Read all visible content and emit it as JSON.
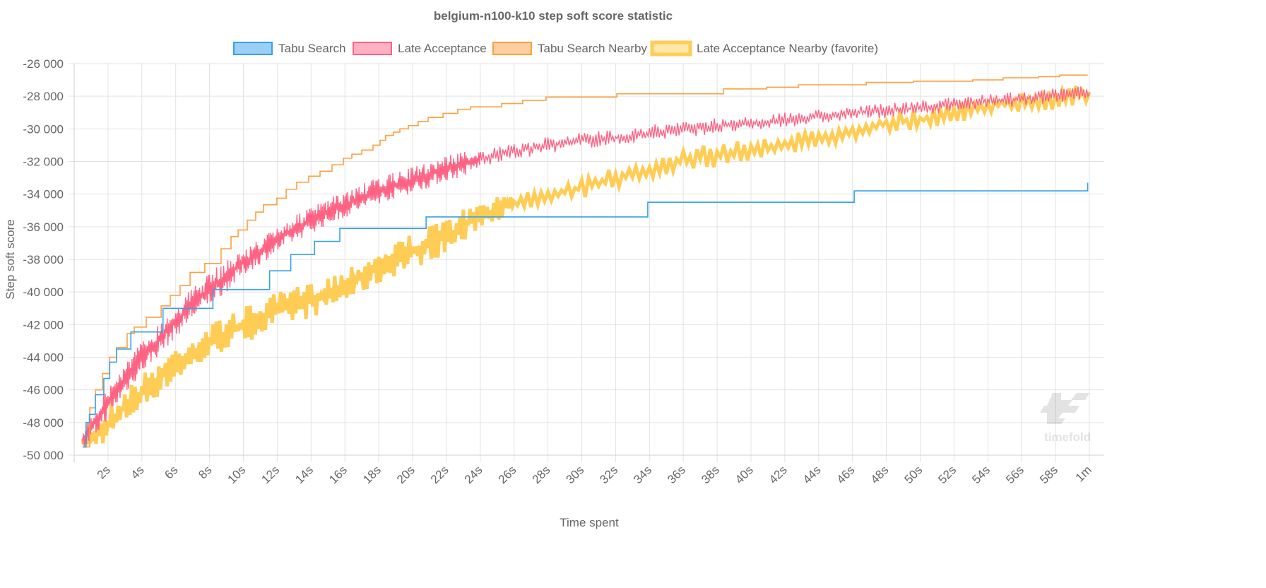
{
  "chart_data": {
    "type": "line",
    "title": "belgium-n100-k10 step soft score statistic",
    "xlabel": "Time spent",
    "ylabel": "Step soft score",
    "xlim": [
      0,
      60
    ],
    "ylim": [
      -50000,
      -26000
    ],
    "grid": true,
    "legend_position": "top",
    "x_ticks": [
      {
        "value": 2,
        "label": "2s"
      },
      {
        "value": 4,
        "label": "4s"
      },
      {
        "value": 6,
        "label": "6s"
      },
      {
        "value": 8,
        "label": "8s"
      },
      {
        "value": 10,
        "label": "10s"
      },
      {
        "value": 12,
        "label": "12s"
      },
      {
        "value": 14,
        "label": "14s"
      },
      {
        "value": 16,
        "label": "16s"
      },
      {
        "value": 18,
        "label": "18s"
      },
      {
        "value": 20,
        "label": "20s"
      },
      {
        "value": 22,
        "label": "22s"
      },
      {
        "value": 24,
        "label": "24s"
      },
      {
        "value": 26,
        "label": "26s"
      },
      {
        "value": 28,
        "label": "28s"
      },
      {
        "value": 30,
        "label": "30s"
      },
      {
        "value": 32,
        "label": "32s"
      },
      {
        "value": 34,
        "label": "34s"
      },
      {
        "value": 36,
        "label": "36s"
      },
      {
        "value": 38,
        "label": "38s"
      },
      {
        "value": 40,
        "label": "40s"
      },
      {
        "value": 42,
        "label": "42s"
      },
      {
        "value": 44,
        "label": "44s"
      },
      {
        "value": 46,
        "label": "46s"
      },
      {
        "value": 48,
        "label": "48s"
      },
      {
        "value": 50,
        "label": "50s"
      },
      {
        "value": 52,
        "label": "52s"
      },
      {
        "value": 54,
        "label": "54s"
      },
      {
        "value": 56,
        "label": "56s"
      },
      {
        "value": 58,
        "label": "58s"
      },
      {
        "value": 60,
        "label": "1m"
      }
    ],
    "y_ticks": [
      {
        "value": -26000,
        "label": "-26 000"
      },
      {
        "value": -28000,
        "label": "-28 000"
      },
      {
        "value": -30000,
        "label": "-30 000"
      },
      {
        "value": -32000,
        "label": "-32 000"
      },
      {
        "value": -34000,
        "label": "-34 000"
      },
      {
        "value": -36000,
        "label": "-36 000"
      },
      {
        "value": -38000,
        "label": "-38 000"
      },
      {
        "value": -40000,
        "label": "-40 000"
      },
      {
        "value": -42000,
        "label": "-42 000"
      },
      {
        "value": -44000,
        "label": "-44 000"
      },
      {
        "value": -46000,
        "label": "-46 000"
      },
      {
        "value": -48000,
        "label": "-48 000"
      },
      {
        "value": -50000,
        "label": "-50 000"
      }
    ],
    "series": [
      {
        "name": "Tabu Search",
        "color": "#36a2eb",
        "fill": "#9ad0f5",
        "style": "step",
        "points": [
          [
            0.5,
            -49500
          ],
          [
            0.7,
            -48000
          ],
          [
            0.9,
            -47500
          ],
          [
            1.25,
            -46300
          ],
          [
            1.75,
            -45300
          ],
          [
            2.1,
            -44300
          ],
          [
            2.5,
            -43500
          ],
          [
            3.35,
            -42450
          ],
          [
            5.25,
            -41000
          ],
          [
            8.2,
            -39850
          ],
          [
            11.55,
            -38700
          ],
          [
            12.8,
            -37700
          ],
          [
            14.2,
            -36900
          ],
          [
            15.7,
            -36100
          ],
          [
            20.8,
            -35400
          ],
          [
            33.9,
            -34500
          ],
          [
            46.1,
            -33800
          ],
          [
            59.9,
            -33800
          ],
          [
            59.9,
            -33300
          ]
        ]
      },
      {
        "name": "Late Acceptance",
        "color": "#ff6384",
        "fill": "#ffb1c1",
        "style": "noisy",
        "range_points": [
          [
            0.5,
            -49500,
            -48600
          ],
          [
            1,
            -49300,
            -47300
          ],
          [
            2,
            -47800,
            -45800
          ],
          [
            3,
            -46300,
            -44300
          ],
          [
            4,
            -45000,
            -43000
          ],
          [
            5,
            -43900,
            -41900
          ],
          [
            6,
            -42800,
            -40800
          ],
          [
            7,
            -41700,
            -39700
          ],
          [
            8,
            -40850,
            -38850
          ],
          [
            9,
            -40000,
            -38000
          ],
          [
            10,
            -39000,
            -37400
          ],
          [
            11,
            -38300,
            -36700
          ],
          [
            12,
            -37600,
            -36000
          ],
          [
            13,
            -36950,
            -35350
          ],
          [
            14,
            -36400,
            -34800
          ],
          [
            15,
            -35900,
            -34300
          ],
          [
            16,
            -35450,
            -33850
          ],
          [
            17,
            -35000,
            -33400
          ],
          [
            18,
            -34600,
            -33000
          ],
          [
            19,
            -34250,
            -32650
          ],
          [
            20,
            -33950,
            -32350
          ],
          [
            21,
            -33600,
            -32000
          ],
          [
            22,
            -33200,
            -31600
          ],
          [
            23,
            -32950,
            -31350
          ],
          [
            24,
            -32350,
            -31350
          ],
          [
            26,
            -31900,
            -30900
          ],
          [
            28,
            -31500,
            -30500
          ],
          [
            30,
            -31200,
            -30200
          ],
          [
            32,
            -31050,
            -30050
          ],
          [
            34,
            -30750,
            -29750
          ],
          [
            36,
            -30550,
            -29550
          ],
          [
            38,
            -30300,
            -29300
          ],
          [
            40,
            -30150,
            -29250
          ],
          [
            42,
            -29900,
            -29000
          ],
          [
            44,
            -29700,
            -28800
          ],
          [
            46,
            -29450,
            -28550
          ],
          [
            48,
            -29350,
            -28450
          ],
          [
            50,
            -29150,
            -28250
          ],
          [
            52,
            -28950,
            -28050
          ],
          [
            54,
            -28750,
            -27850
          ],
          [
            56,
            -28600,
            -27700
          ],
          [
            58,
            -28400,
            -27500
          ],
          [
            60,
            -28150,
            -27350
          ]
        ]
      },
      {
        "name": "Tabu Search Nearby",
        "color": "#ff9f40",
        "fill": "#ffcf9f",
        "style": "step",
        "points": [
          [
            0.5,
            -49500
          ],
          [
            0.92,
            -47100
          ],
          [
            1.25,
            -46000
          ],
          [
            1.67,
            -45000
          ],
          [
            2.09,
            -44000
          ],
          [
            2.5,
            -43400
          ],
          [
            3.13,
            -42550
          ],
          [
            3.55,
            -42150
          ],
          [
            4.26,
            -41550
          ],
          [
            5.14,
            -40850
          ],
          [
            5.68,
            -40200
          ],
          [
            6.26,
            -39600
          ],
          [
            6.85,
            -38800
          ],
          [
            7.72,
            -38250
          ],
          [
            8.68,
            -37350
          ],
          [
            9.27,
            -36600
          ],
          [
            9.69,
            -36200
          ],
          [
            10.23,
            -35600
          ],
          [
            10.73,
            -35100
          ],
          [
            11.19,
            -34650
          ],
          [
            11.98,
            -34250
          ],
          [
            12.53,
            -33700
          ],
          [
            13.15,
            -33270
          ],
          [
            13.86,
            -32900
          ],
          [
            14.53,
            -32600
          ],
          [
            15.24,
            -32200
          ],
          [
            15.91,
            -31800
          ],
          [
            16.41,
            -31550
          ],
          [
            17.0,
            -31300
          ],
          [
            17.66,
            -31000
          ],
          [
            18.08,
            -30700
          ],
          [
            18.41,
            -30400
          ],
          [
            18.87,
            -30200
          ],
          [
            19.25,
            -30000
          ],
          [
            19.75,
            -29800
          ],
          [
            20.33,
            -29550
          ],
          [
            20.92,
            -29300
          ],
          [
            21.8,
            -29050
          ],
          [
            22.67,
            -28800
          ],
          [
            23.42,
            -28650
          ],
          [
            25.26,
            -28450
          ],
          [
            26.51,
            -28250
          ],
          [
            27.89,
            -28050
          ],
          [
            32.07,
            -27850
          ],
          [
            38.37,
            -27550
          ],
          [
            40.92,
            -27450
          ],
          [
            42.8,
            -27300
          ],
          [
            46.81,
            -27150
          ],
          [
            49.6,
            -27080
          ],
          [
            53.1,
            -27000
          ],
          [
            54.9,
            -26870
          ],
          [
            57.0,
            -26800
          ],
          [
            58.25,
            -26700
          ],
          [
            59.9,
            -26700
          ]
        ]
      },
      {
        "name": "Late Acceptance Nearby (favorite)",
        "color": "#ffcd56",
        "fill": "#ffe6aa",
        "style": "noisy-thick",
        "range_points": [
          [
            0.5,
            -49600,
            -49000
          ],
          [
            1,
            -49600,
            -48200
          ],
          [
            2,
            -49200,
            -47000
          ],
          [
            3,
            -48100,
            -45900
          ],
          [
            4,
            -47250,
            -45050
          ],
          [
            5,
            -46400,
            -44200
          ],
          [
            6,
            -45500,
            -43300
          ],
          [
            7,
            -44850,
            -42650
          ],
          [
            8,
            -44200,
            -42000
          ],
          [
            9,
            -43550,
            -41350
          ],
          [
            10,
            -43150,
            -40950
          ],
          [
            11,
            -42700,
            -40500
          ],
          [
            12,
            -42250,
            -40050
          ],
          [
            13,
            -41900,
            -39700
          ],
          [
            14,
            -41600,
            -39400
          ],
          [
            15,
            -41150,
            -38950
          ],
          [
            16,
            -40750,
            -38550
          ],
          [
            17,
            -40100,
            -37900
          ],
          [
            18,
            -39600,
            -37400
          ],
          [
            19,
            -39000,
            -36800
          ],
          [
            20,
            -38600,
            -36400
          ],
          [
            21,
            -38150,
            -35950
          ],
          [
            22,
            -37650,
            -35450
          ],
          [
            23,
            -37100,
            -34900
          ],
          [
            24,
            -36000,
            -34600
          ],
          [
            25,
            -35600,
            -34200
          ],
          [
            26,
            -35250,
            -33850
          ],
          [
            28,
            -34850,
            -33450
          ],
          [
            30,
            -34300,
            -32900
          ],
          [
            32,
            -33650,
            -32250
          ],
          [
            34,
            -33200,
            -31800
          ],
          [
            36,
            -32550,
            -31150
          ],
          [
            38,
            -32350,
            -30950
          ],
          [
            40,
            -31900,
            -30500
          ],
          [
            42,
            -31600,
            -30400
          ],
          [
            44,
            -31150,
            -29950
          ],
          [
            46,
            -30700,
            -29500
          ],
          [
            48,
            -30250,
            -29050
          ],
          [
            50,
            -30000,
            -28800
          ],
          [
            52,
            -29650,
            -28450
          ],
          [
            54,
            -29200,
            -28000
          ],
          [
            56,
            -29000,
            -27800
          ],
          [
            58,
            -28850,
            -27650
          ],
          [
            60,
            -28300,
            -27200
          ]
        ]
      }
    ]
  },
  "watermark": {
    "text": "timefold"
  }
}
